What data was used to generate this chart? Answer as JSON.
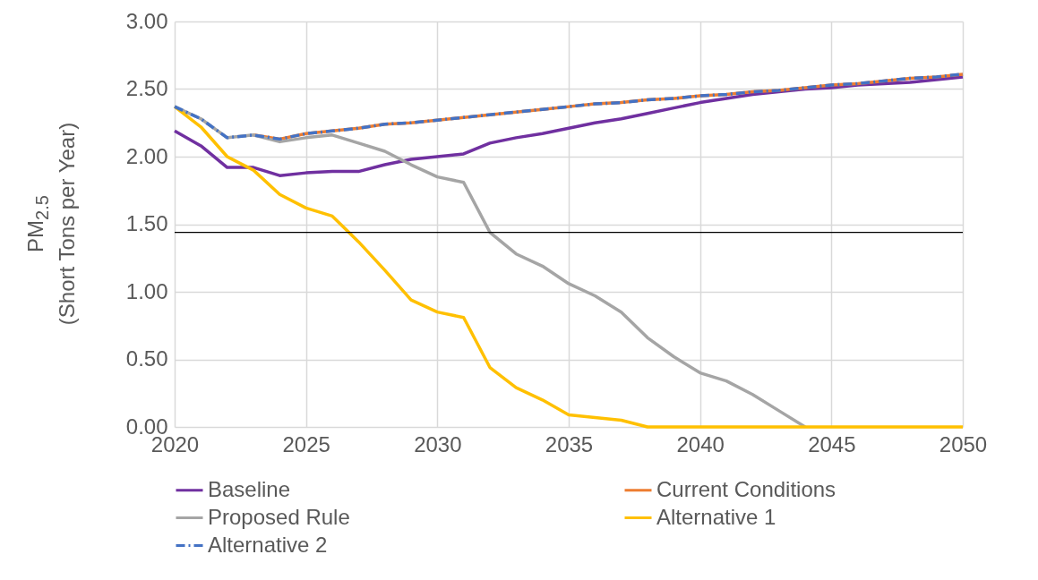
{
  "chart_data": {
    "type": "line",
    "ylabel": "PM$_{2.5}$\n(Short Tons per Year)",
    "x": [
      2020,
      2021,
      2022,
      2023,
      2024,
      2025,
      2026,
      2027,
      2028,
      2029,
      2030,
      2031,
      2032,
      2033,
      2034,
      2035,
      2036,
      2037,
      2038,
      2039,
      2040,
      2041,
      2042,
      2043,
      2044,
      2045,
      2046,
      2047,
      2048,
      2049,
      2050
    ],
    "series": [
      {
        "name": "Baseline",
        "color": "#7030a0",
        "line_style": "solid",
        "values": [
          2.19,
          2.08,
          1.92,
          1.92,
          1.86,
          1.88,
          1.89,
          1.89,
          1.94,
          1.98,
          2.0,
          2.02,
          2.1,
          2.14,
          2.17,
          2.21,
          2.25,
          2.28,
          2.32,
          2.36,
          2.4,
          2.43,
          2.46,
          2.48,
          2.5,
          2.51,
          2.53,
          2.54,
          2.55,
          2.57,
          2.59
        ]
      },
      {
        "name": "Current Conditions",
        "color": "#ed7d31",
        "line_style": "solid",
        "values": [
          null,
          null,
          null,
          2.16,
          2.13,
          2.17,
          2.19,
          2.21,
          2.24,
          2.25,
          2.27,
          2.29,
          2.31,
          2.33,
          2.35,
          2.37,
          2.39,
          2.4,
          2.42,
          2.43,
          2.45,
          2.46,
          2.48,
          2.49,
          2.51,
          2.53,
          2.54,
          2.56,
          2.58,
          2.59,
          2.61
        ]
      },
      {
        "name": "Proposed Rule",
        "color": "#a5a5a5",
        "line_style": "solid",
        "values": [
          2.37,
          2.28,
          2.14,
          2.16,
          2.11,
          2.14,
          2.16,
          2.1,
          2.04,
          1.94,
          1.85,
          1.81,
          1.44,
          1.28,
          1.19,
          1.06,
          0.97,
          0.85,
          0.66,
          0.52,
          0.4,
          0.34,
          0.24,
          0.12,
          0.0,
          null,
          null,
          null,
          null,
          null,
          null
        ]
      },
      {
        "name": "Alternative 1",
        "color": "#ffc000",
        "line_style": "solid",
        "values": [
          2.37,
          2.22,
          2.0,
          1.9,
          1.72,
          1.62,
          1.56,
          1.37,
          1.16,
          0.94,
          0.85,
          0.81,
          0.44,
          0.29,
          0.2,
          0.09,
          0.07,
          0.05,
          0.0,
          0.0,
          0.0,
          0.0,
          0.0,
          0.0,
          0.0,
          0.0,
          0.0,
          0.0,
          0.0,
          0.0,
          0.0
        ]
      },
      {
        "name": "Alternative 2",
        "color": "#4472c4",
        "line_style": "dashed",
        "values": [
          2.37,
          2.28,
          2.14,
          2.16,
          2.13,
          2.17,
          2.19,
          2.21,
          2.24,
          2.25,
          2.27,
          2.29,
          2.31,
          2.33,
          2.35,
          2.37,
          2.39,
          2.4,
          2.42,
          2.43,
          2.45,
          2.46,
          2.48,
          2.49,
          2.51,
          2.53,
          2.54,
          2.56,
          2.58,
          2.59,
          2.61
        ]
      }
    ],
    "xlim": [
      2020,
      2050
    ],
    "xticks": [
      2020,
      2025,
      2030,
      2035,
      2040,
      2045,
      2050
    ],
    "ylim": [
      0,
      3
    ],
    "yticks": [
      {
        "value": 0,
        "label": "0.00"
      },
      {
        "value": 0.5,
        "label": "0.50"
      },
      {
        "value": 1,
        "label": "1.00"
      },
      {
        "value": 1.5,
        "label": "1.50"
      },
      {
        "value": 2,
        "label": "2.00"
      },
      {
        "value": 2.5,
        "label": "2.50"
      },
      {
        "value": 3,
        "label": "3.00"
      }
    ],
    "ref_lines": [
      {
        "axis": "y",
        "value": 1.44,
        "color": "#000000"
      }
    ],
    "grid": true,
    "legend": "bottom",
    "marker": "none"
  }
}
